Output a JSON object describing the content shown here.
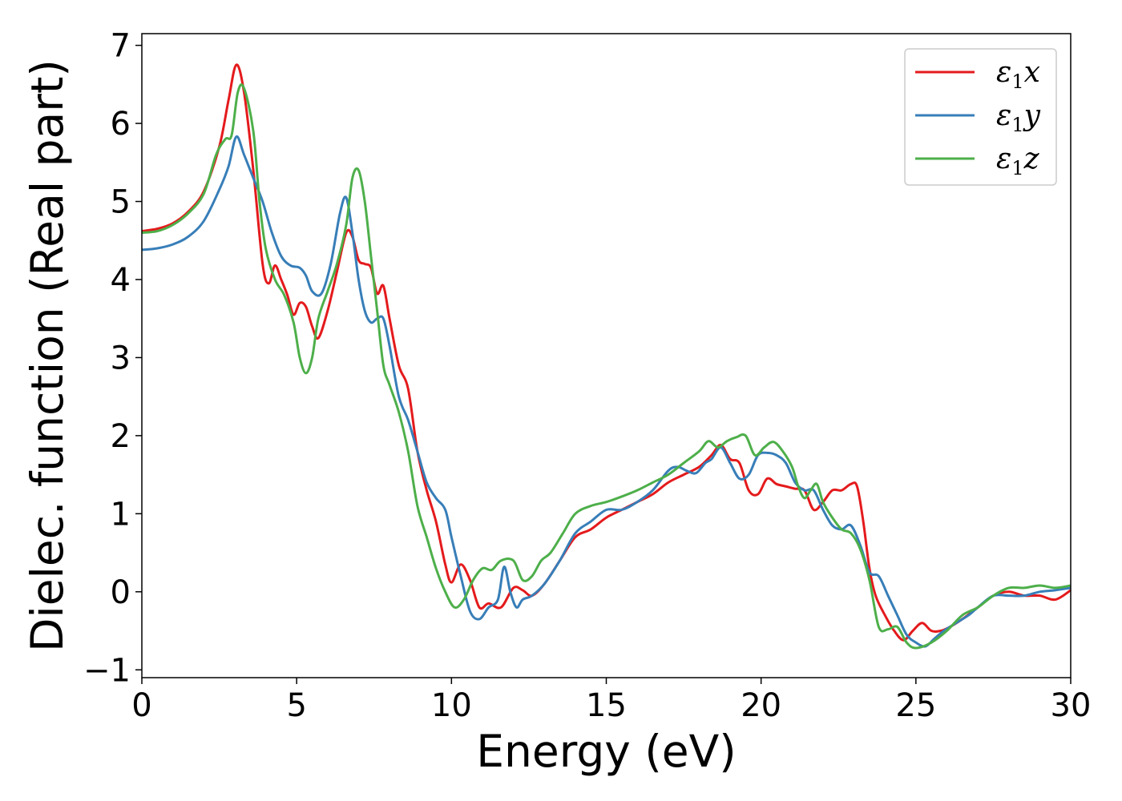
{
  "chart_data": {
    "type": "line",
    "xlabel": "Energy (eV)",
    "ylabel": "Dielec. function (Real part)",
    "xlim": [
      0,
      30
    ],
    "ylim": [
      -1.1,
      7.15
    ],
    "xticks": [
      0,
      5,
      10,
      15,
      20,
      25,
      30
    ],
    "yticks": [
      -1,
      0,
      1,
      2,
      3,
      4,
      5,
      6,
      7
    ],
    "xtick_labels": [
      "0",
      "5",
      "10",
      "15",
      "20",
      "25",
      "30"
    ],
    "ytick_labels": [
      "−1",
      "0",
      "1",
      "2",
      "3",
      "4",
      "5",
      "6",
      "7"
    ],
    "grid": false,
    "legend_position": "top-right",
    "series": [
      {
        "name": "ε1x",
        "legend": {
          "symbol": "ε",
          "sub": "1",
          "suffix": "x"
        },
        "color": "#e41a1c",
        "x": [
          0,
          0.5,
          1,
          1.5,
          2,
          2.5,
          2.8,
          3.05,
          3.3,
          3.6,
          3.9,
          4.1,
          4.3,
          4.5,
          4.7,
          4.9,
          5.1,
          5.3,
          5.5,
          5.7,
          6.0,
          6.3,
          6.6,
          6.8,
          7.0,
          7.2,
          7.4,
          7.6,
          7.8,
          8.0,
          8.3,
          8.6,
          8.9,
          9.2,
          9.5,
          9.8,
          10.0,
          10.3,
          10.6,
          10.9,
          11.2,
          11.6,
          12.0,
          12.3,
          12.6,
          13.0,
          13.5,
          14.0,
          14.5,
          15.0,
          15.5,
          16.0,
          16.5,
          17.0,
          17.5,
          18.0,
          18.4,
          18.7,
          19.0,
          19.3,
          19.6,
          19.9,
          20.2,
          20.5,
          20.8,
          21.1,
          21.4,
          21.7,
          22.0,
          22.3,
          22.6,
          22.9,
          23.1,
          23.3,
          23.5,
          23.7,
          24.0,
          24.3,
          24.6,
          24.9,
          25.2,
          25.5,
          25.8,
          26.1,
          26.5,
          27.0,
          27.5,
          28.0,
          28.5,
          29.0,
          29.5,
          30.0
        ],
        "y": [
          4.62,
          4.65,
          4.72,
          4.87,
          5.13,
          5.7,
          6.3,
          6.75,
          6.4,
          5.4,
          4.2,
          3.95,
          4.18,
          4.0,
          3.8,
          3.55,
          3.7,
          3.65,
          3.4,
          3.25,
          3.6,
          4.1,
          4.6,
          4.55,
          4.25,
          4.2,
          4.15,
          3.82,
          3.92,
          3.5,
          2.9,
          2.6,
          1.8,
          1.3,
          0.9,
          0.35,
          0.12,
          0.35,
          0.15,
          -0.2,
          -0.15,
          -0.2,
          0.05,
          0.02,
          -0.05,
          0.1,
          0.4,
          0.7,
          0.8,
          0.95,
          1.05,
          1.15,
          1.25,
          1.4,
          1.5,
          1.6,
          1.75,
          1.88,
          1.7,
          1.65,
          1.3,
          1.25,
          1.45,
          1.38,
          1.35,
          1.32,
          1.3,
          1.05,
          1.15,
          1.3,
          1.3,
          1.38,
          1.35,
          0.9,
          0.3,
          -0.05,
          -0.3,
          -0.5,
          -0.62,
          -0.5,
          -0.4,
          -0.5,
          -0.5,
          -0.45,
          -0.35,
          -0.2,
          -0.05,
          0.0,
          -0.05,
          -0.05,
          -0.1,
          0.02
        ]
      },
      {
        "name": "ε1y",
        "legend": {
          "symbol": "ε",
          "sub": "1",
          "suffix": "y"
        },
        "color": "#377eb8",
        "x": [
          0,
          0.5,
          1,
          1.5,
          2,
          2.5,
          2.8,
          3.05,
          3.3,
          3.6,
          3.9,
          4.2,
          4.5,
          4.8,
          5.1,
          5.3,
          5.5,
          5.8,
          6.1,
          6.4,
          6.6,
          6.8,
          7.0,
          7.2,
          7.4,
          7.6,
          7.8,
          8.0,
          8.3,
          8.6,
          8.9,
          9.2,
          9.5,
          9.8,
          10.0,
          10.3,
          10.6,
          10.9,
          11.2,
          11.5,
          11.7,
          11.9,
          12.1,
          12.3,
          12.6,
          13.0,
          13.5,
          14.0,
          14.5,
          15.0,
          15.5,
          16.0,
          16.5,
          17.0,
          17.3,
          17.6,
          17.9,
          18.2,
          18.4,
          18.7,
          19.0,
          19.3,
          19.6,
          19.9,
          20.2,
          20.5,
          20.8,
          21.1,
          21.4,
          21.7,
          22.0,
          22.3,
          22.6,
          22.9,
          23.2,
          23.5,
          23.8,
          24.1,
          24.4,
          24.7,
          25.0,
          25.3,
          25.6,
          25.9,
          26.3,
          26.7,
          27.0,
          27.5,
          28.0,
          28.5,
          29.0,
          29.5,
          30.0
        ],
        "y": [
          4.38,
          4.4,
          4.45,
          4.55,
          4.75,
          5.15,
          5.45,
          5.83,
          5.6,
          5.3,
          5.0,
          4.6,
          4.3,
          4.18,
          4.15,
          4.05,
          3.85,
          3.82,
          4.2,
          4.85,
          5.05,
          4.6,
          4.0,
          3.6,
          3.45,
          3.5,
          3.5,
          3.15,
          2.5,
          2.2,
          1.8,
          1.4,
          1.2,
          1.05,
          0.7,
          0.2,
          -0.25,
          -0.35,
          -0.2,
          -0.1,
          0.32,
          0.0,
          -0.2,
          -0.1,
          -0.05,
          0.1,
          0.4,
          0.75,
          0.9,
          1.05,
          1.05,
          1.15,
          1.3,
          1.55,
          1.6,
          1.55,
          1.52,
          1.65,
          1.7,
          1.85,
          1.65,
          1.45,
          1.5,
          1.75,
          1.78,
          1.75,
          1.65,
          1.4,
          1.3,
          1.3,
          1.05,
          0.85,
          0.8,
          0.85,
          0.6,
          0.25,
          0.2,
          -0.05,
          -0.3,
          -0.55,
          -0.65,
          -0.7,
          -0.6,
          -0.5,
          -0.4,
          -0.3,
          -0.2,
          -0.05,
          -0.05,
          -0.05,
          0.0,
          0.02,
          0.05
        ]
      },
      {
        "name": "ε1z",
        "legend": {
          "symbol": "ε",
          "sub": "1",
          "suffix": "z"
        },
        "color": "#4daf4a",
        "x": [
          0,
          0.5,
          1,
          1.5,
          2,
          2.4,
          2.7,
          2.9,
          3.1,
          3.3,
          3.6,
          3.8,
          4.0,
          4.3,
          4.6,
          4.9,
          5.1,
          5.3,
          5.5,
          5.7,
          6.0,
          6.3,
          6.6,
          6.8,
          7.0,
          7.2,
          7.4,
          7.6,
          7.8,
          8.0,
          8.3,
          8.6,
          8.9,
          9.2,
          9.5,
          9.8,
          10.1,
          10.4,
          10.7,
          11.0,
          11.3,
          11.6,
          12.0,
          12.3,
          12.6,
          12.9,
          13.2,
          13.6,
          14.0,
          14.5,
          15.0,
          15.5,
          16.0,
          16.5,
          17.0,
          17.5,
          18.0,
          18.3,
          18.6,
          18.9,
          19.2,
          19.5,
          19.8,
          20.1,
          20.4,
          20.7,
          21.0,
          21.2,
          21.4,
          21.6,
          21.8,
          22.0,
          22.3,
          22.6,
          22.9,
          23.2,
          23.5,
          23.8,
          24.1,
          24.4,
          24.7,
          25.0,
          25.5,
          26.0,
          26.5,
          27.0,
          27.5,
          28.0,
          28.5,
          29.0,
          29.5,
          30.0
        ],
        "y": [
          4.6,
          4.62,
          4.7,
          4.85,
          5.1,
          5.6,
          5.8,
          5.85,
          6.4,
          6.45,
          5.9,
          5.0,
          4.4,
          4.0,
          3.8,
          3.45,
          3.0,
          2.8,
          3.0,
          3.5,
          3.85,
          4.2,
          4.7,
          5.3,
          5.4,
          5.0,
          4.3,
          3.6,
          2.9,
          2.65,
          2.3,
          1.8,
          1.1,
          0.7,
          0.3,
          0.0,
          -0.2,
          -0.1,
          0.15,
          0.3,
          0.28,
          0.4,
          0.4,
          0.15,
          0.2,
          0.4,
          0.5,
          0.75,
          1.0,
          1.1,
          1.15,
          1.22,
          1.3,
          1.4,
          1.5,
          1.65,
          1.8,
          1.93,
          1.85,
          1.93,
          1.98,
          2.0,
          1.75,
          1.85,
          1.92,
          1.8,
          1.6,
          1.35,
          1.2,
          1.3,
          1.38,
          1.15,
          0.95,
          0.8,
          0.75,
          0.55,
          0.15,
          -0.45,
          -0.48,
          -0.45,
          -0.65,
          -0.72,
          -0.65,
          -0.5,
          -0.3,
          -0.2,
          -0.05,
          0.05,
          0.05,
          0.08,
          0.05,
          0.08
        ]
      }
    ]
  }
}
